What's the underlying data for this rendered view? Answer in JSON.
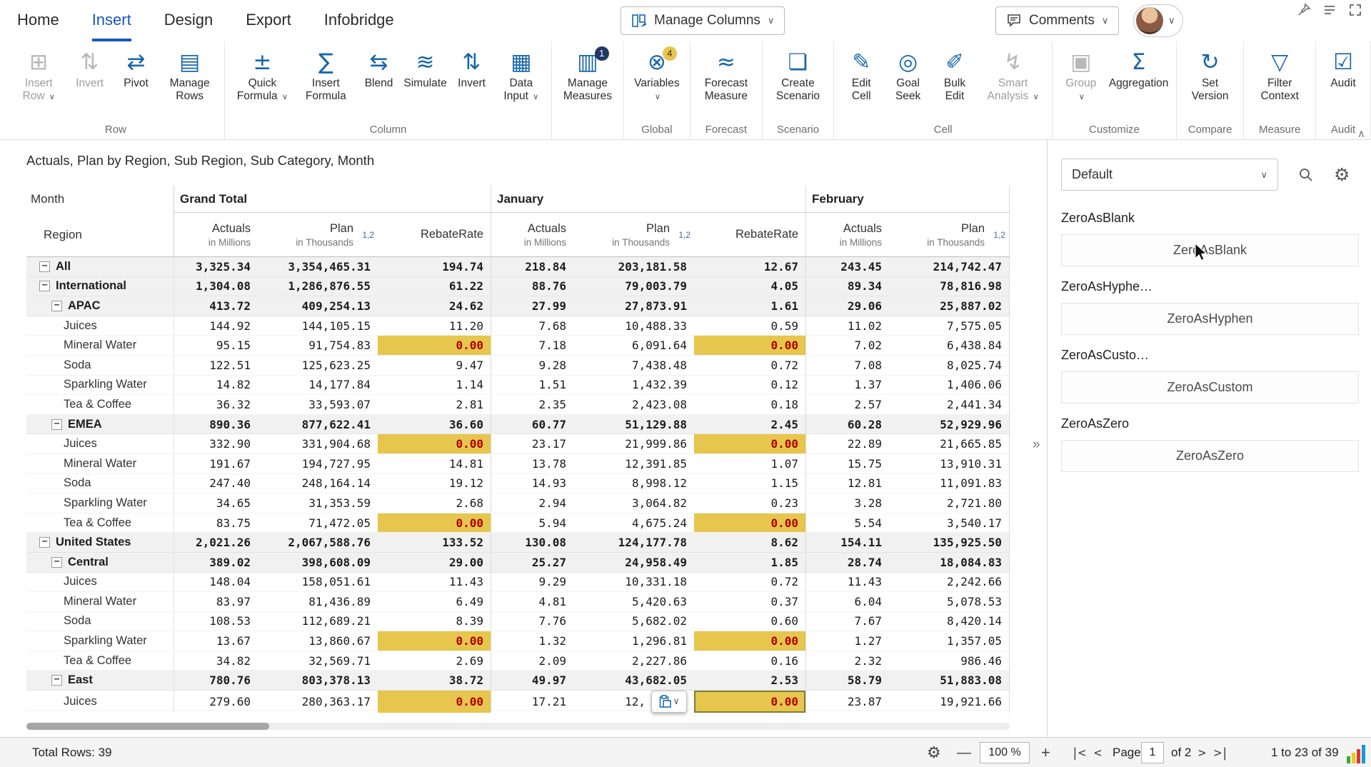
{
  "menu": {
    "tabs": [
      {
        "label": "Home",
        "active": false
      },
      {
        "label": "Insert",
        "active": true
      },
      {
        "label": "Design",
        "active": false
      },
      {
        "label": "Export",
        "active": false
      },
      {
        "label": "Infobridge",
        "active": false
      }
    ],
    "manage_columns_label": "Manage Columns",
    "comments_label": "Comments"
  },
  "ribbon": {
    "groups": [
      {
        "label": "Row",
        "buttons": [
          {
            "label": "Insert Row",
            "icon": "insert-row",
            "glyph": "⊞",
            "disabled": true,
            "dropdown": true
          },
          {
            "label": "Invert",
            "icon": "invert-rows",
            "glyph": "⇅",
            "disabled": true
          },
          {
            "label": "Pivot",
            "icon": "pivot",
            "glyph": "⇄"
          },
          {
            "label": "Manage Rows",
            "icon": "manage-rows",
            "glyph": "▤"
          }
        ]
      },
      {
        "label": "Column",
        "buttons": [
          {
            "label": "Quick Formula",
            "icon": "quick-formula",
            "glyph": "±",
            "dropdown": true
          },
          {
            "label": "Insert Formula",
            "icon": "insert-formula",
            "glyph": "∑"
          },
          {
            "label": "Blend",
            "icon": "blend",
            "glyph": "⇆"
          },
          {
            "label": "Simulate",
            "icon": "simulate",
            "glyph": "≋"
          },
          {
            "label": "Invert",
            "icon": "invert-columns",
            "glyph": "⇅"
          },
          {
            "label": "Data Input",
            "icon": "data-input",
            "glyph": "▦",
            "dropdown": true
          }
        ]
      },
      {
        "label": "",
        "buttons": [
          {
            "label": "Manage Measures",
            "icon": "manage-measures",
            "glyph": "▥",
            "badge": "1",
            "badge_color": "navy"
          }
        ]
      },
      {
        "label": "Global",
        "buttons": [
          {
            "label": "Variables",
            "icon": "variables",
            "glyph": "⊗",
            "badge": "4",
            "badge_color": "gold",
            "dropdown": true
          }
        ]
      },
      {
        "label": "Forecast",
        "buttons": [
          {
            "label": "Forecast Measure",
            "icon": "forecast-measure",
            "glyph": "≈"
          }
        ]
      },
      {
        "label": "Scenario",
        "buttons": [
          {
            "label": "Create Scenario",
            "icon": "create-scenario",
            "glyph": "❏"
          }
        ]
      },
      {
        "label": "Cell",
        "buttons": [
          {
            "label": "Edit Cell",
            "icon": "edit-cell",
            "glyph": "✎"
          },
          {
            "label": "Goal Seek",
            "icon": "goal-seek",
            "glyph": "◎"
          },
          {
            "label": "Bulk Edit",
            "icon": "bulk-edit",
            "glyph": "✐"
          },
          {
            "label": "Smart Analysis",
            "icon": "smart-analysis",
            "glyph": "↯",
            "disabled": true,
            "dropdown": true
          }
        ]
      },
      {
        "label": "Customize",
        "buttons": [
          {
            "label": "Group",
            "icon": "group",
            "glyph": "▣",
            "disabled": true,
            "dropdown": true
          },
          {
            "label": "Aggregation",
            "icon": "aggregation",
            "glyph": "Σ"
          }
        ]
      },
      {
        "label": "Compare",
        "buttons": [
          {
            "label": "Set Version",
            "icon": "set-version",
            "glyph": "↻"
          }
        ]
      },
      {
        "label": "Measure",
        "buttons": [
          {
            "label": "Filter Context",
            "icon": "filter-context",
            "glyph": "▽"
          }
        ]
      },
      {
        "label": "Audit",
        "buttons": [
          {
            "label": "Audit",
            "icon": "audit",
            "glyph": "☑"
          }
        ]
      }
    ]
  },
  "title": "Actuals, Plan by Region, Sub Region, Sub Category, Month",
  "table": {
    "corner_top": "Month",
    "corner_bottom": "Region",
    "groups": [
      {
        "label": "Grand Total",
        "span": 3
      },
      {
        "label": "January",
        "span": 3
      },
      {
        "label": "February",
        "span": 2
      }
    ],
    "columns": [
      {
        "label": "Actuals",
        "sub": "in Millions"
      },
      {
        "label": "Plan",
        "sub": "in Thousands",
        "badge": "1,2"
      },
      {
        "label": "RebateRate"
      },
      {
        "label": "Actuals",
        "sub": "in Millions"
      },
      {
        "label": "Plan",
        "sub": "in Thousands",
        "badge": "1,2"
      },
      {
        "label": "RebateRate"
      },
      {
        "label": "Actuals",
        "sub": "in Millions"
      },
      {
        "label": "Plan",
        "sub": "in Thousands",
        "badge": "1,2"
      }
    ],
    "rows": [
      {
        "label": "All",
        "level": 0,
        "group": true,
        "values": [
          "3,325.34",
          "3,354,465.31",
          "194.74",
          "218.84",
          "203,181.58",
          "12.67",
          "243.45",
          "214,742.47"
        ]
      },
      {
        "label": "International",
        "level": 0,
        "group": true,
        "values": [
          "1,304.08",
          "1,286,876.55",
          "61.22",
          "88.76",
          "79,003.79",
          "4.05",
          "89.34",
          "78,816.98"
        ]
      },
      {
        "label": "APAC",
        "level": 1,
        "group": true,
        "values": [
          "413.72",
          "409,254.13",
          "24.62",
          "27.99",
          "27,873.91",
          "1.61",
          "29.06",
          "25,887.02"
        ]
      },
      {
        "label": "Juices",
        "level": 2,
        "values": [
          "144.92",
          "144,105.15",
          "11.20",
          "7.68",
          "10,488.33",
          "0.59",
          "11.02",
          "7,575.05"
        ]
      },
      {
        "label": "Mineral Water",
        "level": 2,
        "hl": [
          2,
          5
        ],
        "values": [
          "95.15",
          "91,754.83",
          "0.00",
          "7.18",
          "6,091.64",
          "0.00",
          "7.02",
          "6,438.84"
        ]
      },
      {
        "label": "Soda",
        "level": 2,
        "values": [
          "122.51",
          "125,623.25",
          "9.47",
          "9.28",
          "7,438.48",
          "0.72",
          "7.08",
          "8,025.74"
        ]
      },
      {
        "label": "Sparkling Water",
        "level": 2,
        "values": [
          "14.82",
          "14,177.84",
          "1.14",
          "1.51",
          "1,432.39",
          "0.12",
          "1.37",
          "1,406.06"
        ]
      },
      {
        "label": "Tea & Coffee",
        "level": 2,
        "values": [
          "36.32",
          "33,593.07",
          "2.81",
          "2.35",
          "2,423.08",
          "0.18",
          "2.57",
          "2,441.34"
        ]
      },
      {
        "label": "EMEA",
        "level": 1,
        "group": true,
        "values": [
          "890.36",
          "877,622.41",
          "36.60",
          "60.77",
          "51,129.88",
          "2.45",
          "60.28",
          "52,929.96"
        ]
      },
      {
        "label": "Juices",
        "level": 2,
        "hl": [
          2,
          5
        ],
        "values": [
          "332.90",
          "331,904.68",
          "0.00",
          "23.17",
          "21,999.86",
          "0.00",
          "22.89",
          "21,665.85"
        ]
      },
      {
        "label": "Mineral Water",
        "level": 2,
        "values": [
          "191.67",
          "194,727.95",
          "14.81",
          "13.78",
          "12,391.85",
          "1.07",
          "15.75",
          "13,910.31"
        ]
      },
      {
        "label": "Soda",
        "level": 2,
        "values": [
          "247.40",
          "248,164.14",
          "19.12",
          "14.93",
          "8,998.12",
          "1.15",
          "12.81",
          "11,091.83"
        ]
      },
      {
        "label": "Sparkling Water",
        "level": 2,
        "values": [
          "34.65",
          "31,353.59",
          "2.68",
          "2.94",
          "3,064.82",
          "0.23",
          "3.28",
          "2,721.80"
        ]
      },
      {
        "label": "Tea & Coffee",
        "level": 2,
        "hl": [
          2,
          5
        ],
        "values": [
          "83.75",
          "71,472.05",
          "0.00",
          "5.94",
          "4,675.24",
          "0.00",
          "5.54",
          "3,540.17"
        ]
      },
      {
        "label": "United States",
        "level": 0,
        "group": true,
        "values": [
          "2,021.26",
          "2,067,588.76",
          "133.52",
          "130.08",
          "124,177.78",
          "8.62",
          "154.11",
          "135,925.50"
        ]
      },
      {
        "label": "Central",
        "level": 1,
        "group": true,
        "values": [
          "389.02",
          "398,608.09",
          "29.00",
          "25.27",
          "24,958.49",
          "1.85",
          "28.74",
          "18,084.83"
        ]
      },
      {
        "label": "Juices",
        "level": 2,
        "values": [
          "148.04",
          "158,051.61",
          "11.43",
          "9.29",
          "10,331.18",
          "0.72",
          "11.43",
          "2,242.66"
        ]
      },
      {
        "label": "Mineral Water",
        "level": 2,
        "values": [
          "83.97",
          "81,436.89",
          "6.49",
          "4.81",
          "5,420.63",
          "0.37",
          "6.04",
          "5,078.53"
        ]
      },
      {
        "label": "Soda",
        "level": 2,
        "values": [
          "108.53",
          "112,689.21",
          "8.39",
          "7.76",
          "5,682.02",
          "0.60",
          "7.67",
          "8,420.14"
        ]
      },
      {
        "label": "Sparkling Water",
        "level": 2,
        "hl": [
          2,
          5
        ],
        "values": [
          "13.67",
          "13,860.67",
          "0.00",
          "1.32",
          "1,296.81",
          "0.00",
          "1.27",
          "1,357.05"
        ]
      },
      {
        "label": "Tea & Coffee",
        "level": 2,
        "values": [
          "34.82",
          "32,569.71",
          "2.69",
          "2.09",
          "2,227.86",
          "0.16",
          "2.32",
          "986.46"
        ]
      },
      {
        "label": "East",
        "level": 1,
        "group": true,
        "values": [
          "780.76",
          "803,378.13",
          "38.72",
          "49.97",
          "43,682.05",
          "2.53",
          "58.79",
          "51,883.08"
        ]
      },
      {
        "label": "Juices",
        "level": 2,
        "hl": [
          2,
          5
        ],
        "sel": 5,
        "overlay": 4,
        "values": [
          "279.60",
          "280,363.17",
          "0.00",
          "17.21",
          "12,",
          "0.00",
          "23.87",
          "19,921.66"
        ]
      }
    ]
  },
  "panel": {
    "preset": "Default",
    "sections": [
      {
        "title": "ZeroAsBlank",
        "button": "ZeroAsBlank"
      },
      {
        "title": "ZeroAsHyphe…",
        "button": "ZeroAsHyphen"
      },
      {
        "title": "ZeroAsCusto…",
        "button": "ZeroAsCustom"
      },
      {
        "title": "ZeroAsZero",
        "button": "ZeroAsZero"
      }
    ]
  },
  "statusbar": {
    "total_rows": "Total Rows: 39",
    "zoom_out": "—",
    "zoom_value": "100 %",
    "zoom_in": "+",
    "nav_first": "|<",
    "nav_prev": "<",
    "page_label": "Page",
    "page_value": "1",
    "page_of": "of 2",
    "nav_next": ">",
    "nav_last": ">|",
    "range": "1 to 23 of 39"
  },
  "misc": {
    "expander": "»",
    "ribbon_collapse": "∧"
  },
  "colors": {
    "accent": "#1757bd",
    "icon_blue": "#1766ab",
    "highlight_bg": "#e6c64c",
    "highlight_text": "#b00000",
    "group_row_bg": "#f1f1f1"
  }
}
